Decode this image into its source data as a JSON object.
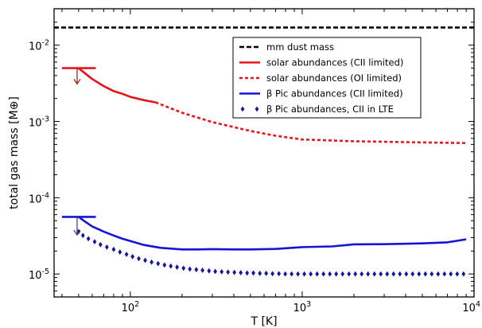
{
  "chart_data": {
    "type": "line",
    "xlabel": "T [K]",
    "ylabel": "total gas mass [M⊕]",
    "xscale": "log",
    "yscale": "log",
    "xlim": [
      36,
      10000
    ],
    "ylim": [
      5e-06,
      0.03
    ],
    "x_ticks": [
      {
        "value": 100,
        "base": "10",
        "exp": "2"
      },
      {
        "value": 1000,
        "base": "10",
        "exp": "3"
      },
      {
        "value": 10000,
        "base": "10",
        "exp": "4"
      }
    ],
    "y_ticks": [
      {
        "value": 1e-05,
        "base": "10",
        "exp": "-5"
      },
      {
        "value": 0.0001,
        "base": "10",
        "exp": "-4"
      },
      {
        "value": 0.001,
        "base": "10",
        "exp": "-3"
      },
      {
        "value": 0.01,
        "base": "10",
        "exp": "-2"
      }
    ],
    "legend_position": "top-right",
    "series": [
      {
        "name": "mm dust mass",
        "color": "#000000",
        "style": "dashed",
        "x": [
          36,
          10000
        ],
        "y": [
          0.017,
          0.017
        ]
      },
      {
        "name": "solar abundances (CII limited)",
        "color": "#e8141c",
        "style": "solid",
        "x": [
          50,
          55,
          60,
          70,
          80,
          90,
          100,
          120,
          140
        ],
        "y": [
          0.005,
          0.0042,
          0.0036,
          0.0029,
          0.0025,
          0.0023,
          0.0021,
          0.0019,
          0.00178
        ]
      },
      {
        "name": "solar abundances (OI limited)",
        "color": "#e8141c",
        "style": "dotted",
        "x": [
          140,
          200,
          300,
          500,
          700,
          1000,
          2000,
          5000,
          9000
        ],
        "y": [
          0.00178,
          0.0013,
          0.00098,
          0.00075,
          0.00065,
          0.00058,
          0.00055,
          0.00053,
          0.00052
        ]
      },
      {
        "name": "β Pic abundances (CII limited)",
        "color": "#1414d8",
        "style": "solid",
        "x": [
          50,
          55,
          60,
          70,
          80,
          90,
          100,
          120,
          150,
          200,
          250,
          300,
          400,
          500,
          700,
          1000,
          1500,
          2000,
          3000,
          5000,
          7000,
          9000
        ],
        "y": [
          5.6e-05,
          4.8e-05,
          4.2e-05,
          3.6e-05,
          3.2e-05,
          2.9e-05,
          2.7e-05,
          2.4e-05,
          2.2e-05,
          2.1e-05,
          2.1e-05,
          2.12e-05,
          2.1e-05,
          2.1e-05,
          2.13e-05,
          2.25e-05,
          2.3e-05,
          2.45e-05,
          2.46e-05,
          2.52e-05,
          2.6e-05,
          2.85e-05
        ]
      },
      {
        "name": "β Pic abundances, CII in LTE",
        "color": "#1414a0",
        "style": "diamonds",
        "x": [
          50,
          53,
          57,
          62,
          67,
          73,
          80,
          87,
          95,
          103,
          112,
          122,
          133,
          145,
          158,
          172,
          187,
          204,
          222,
          242,
          263,
          287,
          312,
          340,
          370,
          403,
          439,
          478,
          520,
          567,
          617,
          672,
          732,
          797,
          868,
          945,
          1029,
          1121,
          1221,
          1330,
          1448,
          1577,
          1718,
          1871,
          2037,
          2219,
          2416,
          2632,
          2866,
          3121,
          3399,
          3702,
          4032,
          4391,
          4782,
          5208,
          5672,
          6177,
          6727,
          7326,
          7979,
          8689
        ],
        "y": [
          3.6e-05,
          3.2e-05,
          2.9e-05,
          2.65e-05,
          2.43e-05,
          2.25e-05,
          2.1e-05,
          1.94e-05,
          1.81e-05,
          1.69e-05,
          1.59e-05,
          1.51e-05,
          1.43e-05,
          1.37e-05,
          1.31e-05,
          1.27e-05,
          1.23e-05,
          1.19e-05,
          1.16e-05,
          1.14e-05,
          1.12e-05,
          1.1e-05,
          1.08e-05,
          1.07e-05,
          1.06e-05,
          1.05e-05,
          1.04e-05,
          1.03e-05,
          1.03e-05,
          1.02e-05,
          1.02e-05,
          1.01e-05,
          1.01e-05,
          1e-05,
          1e-05,
          1e-05,
          1e-05,
          1e-05,
          1e-05,
          1e-05,
          1e-05,
          1e-05,
          1e-05,
          1e-05,
          1e-05,
          1e-05,
          1e-05,
          1e-05,
          1e-05,
          1e-05,
          1e-05,
          1e-05,
          1e-05,
          1e-05,
          1e-05,
          1e-05,
          1e-05,
          1e-05,
          1e-05,
          1e-05,
          1e-05,
          1e-05
        ]
      }
    ],
    "upper_limits": [
      {
        "color": "#e8141c",
        "arrow_color": "#8b1a10",
        "y": 0.005,
        "bar_x": [
          40,
          63
        ],
        "arrow_x": 49,
        "arrow_to": 0.0031
      },
      {
        "color": "#1414d8",
        "arrow_color": "#3a3a6a",
        "y": 5.6e-05,
        "bar_x": [
          40,
          63
        ],
        "arrow_x": 49,
        "arrow_to": 3.25e-05
      }
    ]
  }
}
